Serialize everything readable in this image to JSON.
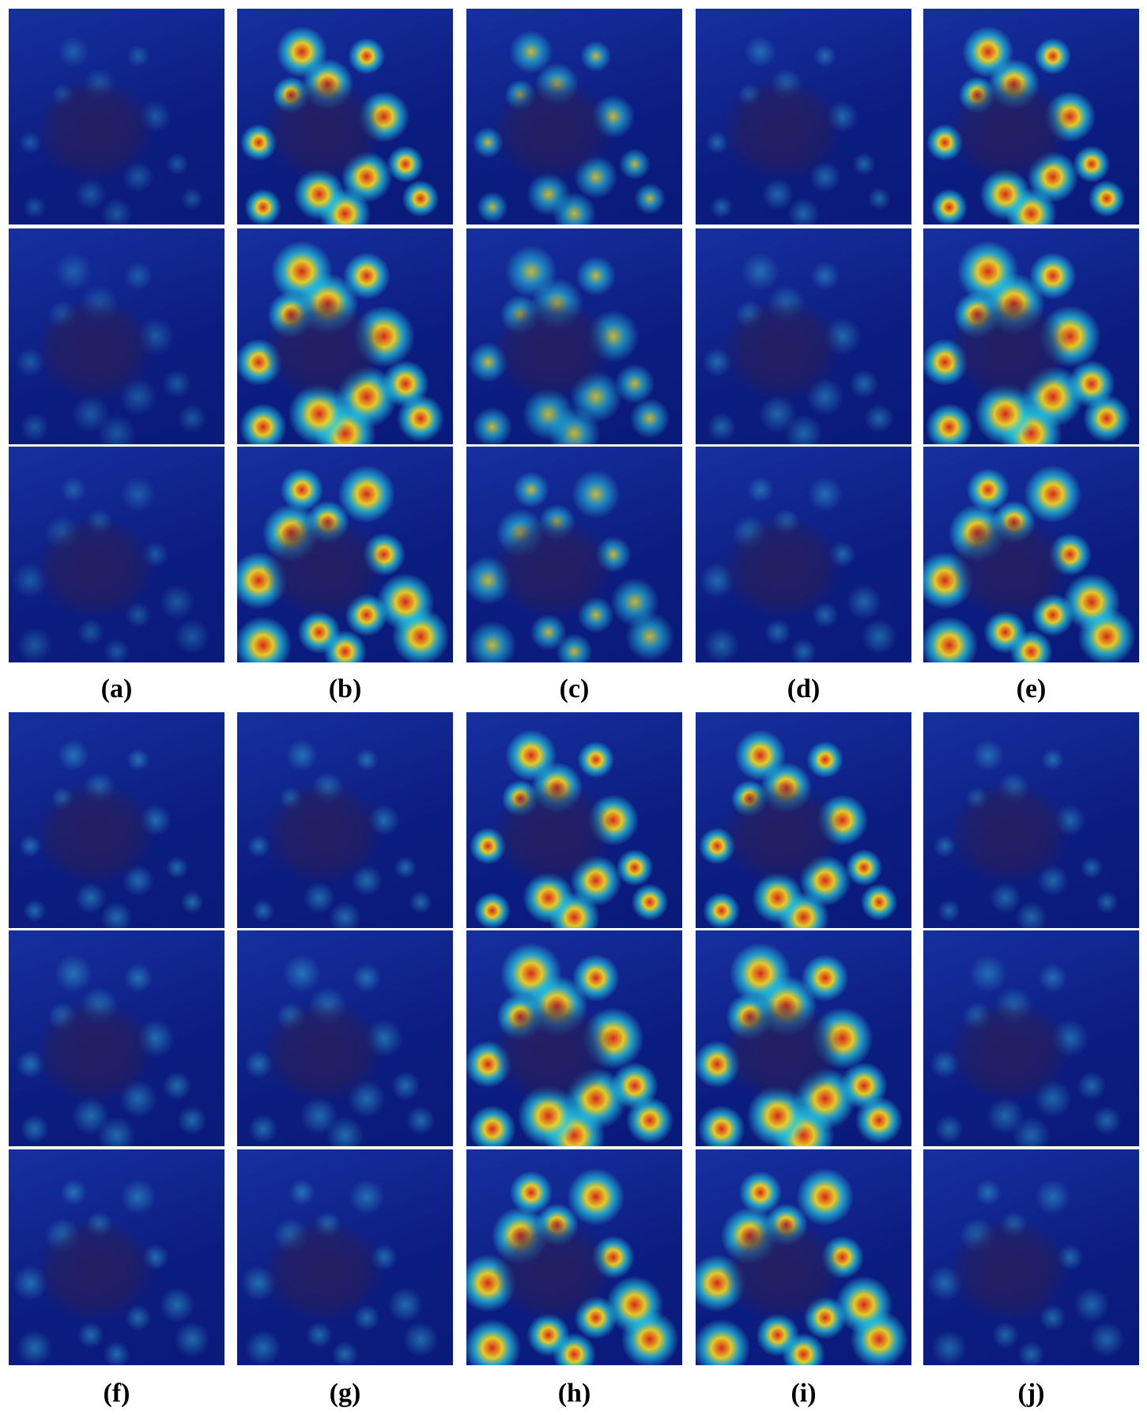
{
  "figure": {
    "labels": [
      "(a)",
      "(b)",
      "(c)",
      "(d)",
      "(e)",
      "(f)",
      "(g)",
      "(h)",
      "(i)",
      "(j)"
    ]
  }
}
